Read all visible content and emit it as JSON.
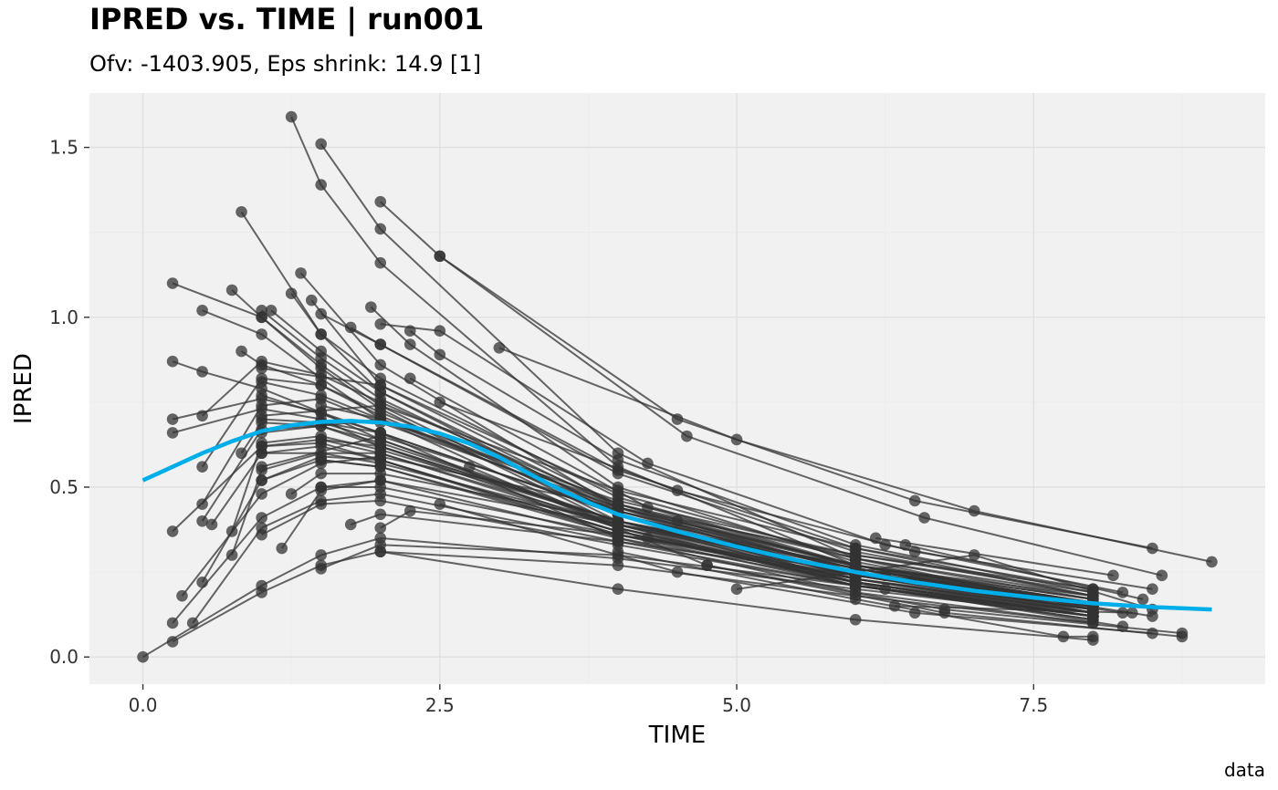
{
  "title": "IPRED vs. TIME | run001",
  "subtitle": "Ofv: -1403.905, Eps shrink: 14.9 [1]",
  "caption": "data",
  "chart_data": {
    "type": "line",
    "xlabel": "TIME",
    "ylabel": "IPRED",
    "xlim": [
      -0.45,
      9.45
    ],
    "ylim": [
      -0.08,
      1.66
    ],
    "x_ticks": [
      0,
      2.5,
      5,
      7.5
    ],
    "x_tick_labels": [
      "0.0",
      "2.5",
      "5.0",
      "7.5"
    ],
    "y_ticks": [
      0,
      0.5,
      1.0,
      1.5
    ],
    "y_tick_labels": [
      "0.0",
      "0.5",
      "1.0",
      "1.5"
    ],
    "grid": true,
    "colors": {
      "panel": "#f1f1f1",
      "grid_major": "#e0e0e0",
      "grid_minor": "#ebebeb",
      "points": "#333333",
      "smooth": "#00aee9"
    },
    "series": [
      {
        "x": [
          0.25,
          1.0,
          1.5,
          2.0,
          4.0,
          6.0,
          8.0
        ],
        "y": [
          1.1,
          1.0,
          0.86,
          0.74,
          0.4,
          0.22,
          0.12
        ]
      },
      {
        "x": [
          0.5,
          1.0,
          1.5,
          2.0,
          4.0,
          6.0,
          8.0
        ],
        "y": [
          1.02,
          0.95,
          0.82,
          0.7,
          0.38,
          0.21,
          0.11
        ]
      },
      {
        "x": [
          0.25,
          0.5,
          1.0,
          1.5,
          2.0,
          4.0,
          6.0,
          8.0
        ],
        "y": [
          0.87,
          0.84,
          0.79,
          0.72,
          0.64,
          0.39,
          0.23,
          0.13
        ]
      },
      {
        "x": [
          0.25,
          1.0,
          1.5,
          2.0,
          4.0,
          6.0,
          8.0
        ],
        "y": [
          0.7,
          0.76,
          0.72,
          0.66,
          0.42,
          0.26,
          0.15
        ]
      },
      {
        "x": [
          0.25,
          1.0,
          1.5,
          2.0,
          4.0,
          6.0,
          8.0
        ],
        "y": [
          0.66,
          0.73,
          0.7,
          0.62,
          0.38,
          0.22,
          0.12
        ]
      },
      {
        "x": [
          0.25,
          1.0,
          1.5,
          2.0,
          4.0,
          6.0,
          8.0
        ],
        "y": [
          0.37,
          0.62,
          0.63,
          0.58,
          0.36,
          0.21,
          0.12
        ]
      },
      {
        "x": [
          0.25,
          1.0,
          1.5,
          2.0,
          4.0,
          6.0,
          8.0
        ],
        "y": [
          0.1,
          0.41,
          0.5,
          0.5,
          0.36,
          0.24,
          0.16
        ]
      },
      {
        "x": [
          0.25,
          1.0,
          1.5,
          2.0,
          4.0,
          6.0,
          8.0
        ],
        "y": [
          0.045,
          0.19,
          0.27,
          0.31,
          0.27,
          0.18,
          0.1
        ]
      },
      {
        "x": [
          0.0,
          1.0,
          1.5,
          2.0,
          4.0,
          6.0,
          8.0
        ],
        "y": [
          0.0,
          0.21,
          0.3,
          0.35,
          0.29,
          0.2,
          0.12
        ]
      },
      {
        "x": [
          0.33,
          1.0,
          1.5,
          2.0,
          4.0,
          6.0,
          8.0
        ],
        "y": [
          0.18,
          0.48,
          0.57,
          0.59,
          0.44,
          0.3,
          0.2
        ]
      },
      {
        "x": [
          0.42,
          1.0,
          1.5,
          2.0,
          4.0,
          6.0,
          8.0
        ],
        "y": [
          0.1,
          0.38,
          0.46,
          0.48,
          0.34,
          0.21,
          0.12
        ]
      },
      {
        "x": [
          0.5,
          1.0,
          1.5,
          2.0,
          4.0,
          6.0,
          8.0
        ],
        "y": [
          0.22,
          0.52,
          0.58,
          0.56,
          0.37,
          0.22,
          0.12
        ]
      },
      {
        "x": [
          0.5,
          1.0,
          1.5,
          2.0,
          4.0,
          6.0,
          8.0
        ],
        "y": [
          0.4,
          0.67,
          0.68,
          0.63,
          0.4,
          0.24,
          0.14
        ]
      },
      {
        "x": [
          0.5,
          1.0,
          1.5,
          2.0,
          4.0,
          6.0,
          8.0
        ],
        "y": [
          0.56,
          0.82,
          0.8,
          0.72,
          0.44,
          0.27,
          0.16
        ]
      },
      {
        "x": [
          0.5,
          1.0,
          1.5,
          2.0,
          4.0,
          6.0,
          8.0
        ],
        "y": [
          0.71,
          0.87,
          0.83,
          0.75,
          0.45,
          0.27,
          0.16
        ]
      },
      {
        "x": [
          0.5,
          1.0,
          1.5,
          2.0,
          4.0,
          6.0,
          8.0
        ],
        "y": [
          0.45,
          0.74,
          0.76,
          0.69,
          0.44,
          0.27,
          0.17
        ]
      },
      {
        "x": [
          0.58,
          1.0,
          1.5,
          2.0,
          4.0,
          6.0,
          8.0
        ],
        "y": [
          0.39,
          0.6,
          0.62,
          0.58,
          0.37,
          0.23,
          0.13
        ]
      },
      {
        "x": [
          0.75,
          1.0,
          1.5,
          2.0,
          4.0,
          6.0,
          8.0
        ],
        "y": [
          0.3,
          0.55,
          0.6,
          0.57,
          0.39,
          0.25,
          0.15
        ]
      },
      {
        "x": [
          0.75,
          1.0,
          1.5,
          2.0,
          4.0,
          6.0,
          8.0
        ],
        "y": [
          0.37,
          0.63,
          0.65,
          0.61,
          0.4,
          0.25,
          0.15
        ]
      },
      {
        "x": [
          0.75,
          1.0,
          1.5,
          2.0,
          4.0,
          6.0,
          8.0
        ],
        "y": [
          1.08,
          1.0,
          0.85,
          0.73,
          0.39,
          0.21,
          0.11
        ]
      },
      {
        "x": [
          0.83,
          1.0,
          1.5,
          2.0,
          4.0,
          6.0,
          8.0
        ],
        "y": [
          0.6,
          0.69,
          0.68,
          0.62,
          0.4,
          0.24,
          0.14
        ]
      },
      {
        "x": [
          0.83,
          1.0,
          1.5,
          2.0,
          4.0,
          6.0,
          8.0
        ],
        "y": [
          0.9,
          0.86,
          0.8,
          0.71,
          0.42,
          0.24,
          0.14
        ]
      },
      {
        "x": [
          0.83,
          1.5,
          2.0,
          4.0,
          6.0,
          8.0
        ],
        "y": [
          1.31,
          0.95,
          0.78,
          0.42,
          0.22,
          0.12
        ]
      },
      {
        "x": [
          1.0,
          1.5,
          2.0,
          4.0,
          6.0,
          8.0
        ],
        "y": [
          1.02,
          0.88,
          0.76,
          0.43,
          0.24,
          0.13
        ]
      },
      {
        "x": [
          1.0,
          1.5,
          2.0,
          4.0,
          6.0,
          8.0
        ],
        "y": [
          0.81,
          0.77,
          0.7,
          0.43,
          0.26,
          0.15
        ]
      },
      {
        "x": [
          1.0,
          1.5,
          2.0,
          4.0,
          6.0,
          8.0
        ],
        "y": [
          0.36,
          0.45,
          0.46,
          0.33,
          0.21,
          0.12
        ]
      },
      {
        "x": [
          1.08,
          1.5,
          2.0,
          4.0,
          6.0,
          8.0
        ],
        "y": [
          1.02,
          0.9,
          0.78,
          0.44,
          0.25,
          0.14
        ]
      },
      {
        "x": [
          1.17,
          1.5,
          2.0,
          4.0,
          6.0,
          8.0
        ],
        "y": [
          0.32,
          0.49,
          0.52,
          0.39,
          0.27,
          0.18
        ]
      },
      {
        "x": [
          1.25,
          1.5,
          2.0,
          4.0,
          6.0,
          8.0
        ],
        "y": [
          1.59,
          1.39,
          1.16,
          0.56,
          0.27,
          0.13
        ]
      },
      {
        "x": [
          1.25,
          1.5,
          2.0,
          4.0,
          6.0,
          8.0
        ],
        "y": [
          1.07,
          0.95,
          0.82,
          0.47,
          0.27,
          0.15
        ]
      },
      {
        "x": [
          1.25,
          1.5,
          2.0,
          4.0,
          6.0,
          8.0
        ],
        "y": [
          0.48,
          0.54,
          0.54,
          0.4,
          0.27,
          0.17
        ]
      },
      {
        "x": [
          1.33,
          2.0,
          4.0,
          6.0,
          8.0
        ],
        "y": [
          1.13,
          0.86,
          0.44,
          0.23,
          0.12
        ]
      },
      {
        "x": [
          1.42,
          2.0,
          4.0,
          6.0,
          8.0
        ],
        "y": [
          1.05,
          0.8,
          0.45,
          0.25,
          0.13
        ]
      },
      {
        "x": [
          1.5,
          2.0,
          4.0,
          6.0,
          8.0
        ],
        "y": [
          1.51,
          1.26,
          0.6,
          0.29,
          0.14
        ]
      },
      {
        "x": [
          1.5,
          2.0,
          4.0,
          6.0,
          8.0
        ],
        "y": [
          1.01,
          0.92,
          0.54,
          0.31,
          0.18
        ]
      },
      {
        "x": [
          1.5,
          2.0,
          4.0,
          6.0,
          8.0
        ],
        "y": [
          0.26,
          0.33,
          0.3,
          0.21,
          0.13
        ]
      },
      {
        "x": [
          1.75,
          2.0,
          4.0,
          6.0,
          8.0
        ],
        "y": [
          0.39,
          0.42,
          0.34,
          0.24,
          0.15
        ]
      },
      {
        "x": [
          1.75,
          2.0,
          4.0,
          6.0,
          8.0
        ],
        "y": [
          0.97,
          0.92,
          0.55,
          0.32,
          0.18
        ]
      },
      {
        "x": [
          1.92,
          2.25,
          4.0,
          6.0,
          8.0
        ],
        "y": [
          1.03,
          0.92,
          0.5,
          0.28,
          0.15
        ]
      },
      {
        "x": [
          2.0,
          2.5,
          4.5,
          6.5,
          8.5
        ],
        "y": [
          1.34,
          1.18,
          0.7,
          0.46,
          0.32
        ]
      },
      {
        "x": [
          2.0,
          2.25,
          4.0,
          6.0,
          8.0
        ],
        "y": [
          0.38,
          0.43,
          0.36,
          0.25,
          0.16
        ]
      },
      {
        "x": [
          2.0,
          2.5,
          4.25,
          6.25,
          8.25
        ],
        "y": [
          0.98,
          0.96,
          0.57,
          0.33,
          0.19
        ]
      },
      {
        "x": [
          2.25,
          2.5,
          4.0,
          6.0,
          8.0
        ],
        "y": [
          0.96,
          0.89,
          0.58,
          0.33,
          0.19
        ]
      },
      {
        "x": [
          2.5,
          4.58,
          6.58,
          8.58
        ],
        "y": [
          1.18,
          0.65,
          0.41,
          0.24
        ]
      },
      {
        "x": [
          3.0,
          5.0,
          7.0,
          9.0
        ],
        "y": [
          0.91,
          0.64,
          0.43,
          0.28
        ]
      },
      {
        "x": [
          2.5,
          4.5,
          6.5,
          8.5
        ],
        "y": [
          0.75,
          0.49,
          0.31,
          0.2
        ]
      },
      {
        "x": [
          2.25,
          4.25,
          6.25,
          8.25
        ],
        "y": [
          0.82,
          0.44,
          0.24,
          0.13
        ]
      },
      {
        "x": [
          2.5,
          4.5,
          6.5,
          8.5
        ],
        "y": [
          0.45,
          0.25,
          0.13,
          0.07
        ]
      },
      {
        "x": [
          2.0,
          4.0,
          6.0,
          8.0
        ],
        "y": [
          0.31,
          0.2,
          0.11,
          0.05
        ]
      },
      {
        "x": [
          2.75,
          4.75,
          6.75,
          8.75
        ],
        "y": [
          0.56,
          0.27,
          0.13,
          0.06
        ]
      },
      {
        "x": [
          1.0,
          2.0,
          4.0,
          6.0,
          8.0
        ],
        "y": [
          0.56,
          0.65,
          0.43,
          0.27,
          0.16
        ]
      },
      {
        "x": [
          1.0,
          2.0,
          4.0,
          6.0,
          8.0
        ],
        "y": [
          0.66,
          0.7,
          0.46,
          0.3,
          0.19
        ]
      },
      {
        "x": [
          1.0,
          2.0,
          4.0,
          6.0,
          8.0
        ],
        "y": [
          0.71,
          0.74,
          0.49,
          0.32,
          0.2
        ]
      },
      {
        "x": [
          1.0,
          2.0,
          4.0,
          6.0,
          8.0
        ],
        "y": [
          0.6,
          0.6,
          0.38,
          0.23,
          0.13
        ]
      },
      {
        "x": [
          1.0,
          2.0,
          4.0,
          6.0,
          8.0
        ],
        "y": [
          0.85,
          0.8,
          0.48,
          0.29,
          0.17
        ]
      },
      {
        "x": [
          1.0,
          2.0,
          4.0,
          6.0,
          8.0
        ],
        "y": [
          0.77,
          0.66,
          0.35,
          0.19,
          0.1
        ]
      },
      {
        "x": [
          1.5,
          2.0,
          4.0,
          6.0,
          8.0
        ],
        "y": [
          0.64,
          0.62,
          0.4,
          0.26,
          0.16
        ]
      },
      {
        "x": [
          1.5,
          2.0,
          4.0,
          6.0,
          8.0
        ],
        "y": [
          0.58,
          0.56,
          0.36,
          0.23,
          0.14
        ]
      },
      {
        "x": [
          1.5,
          2.0,
          4.0,
          6.0,
          8.0
        ],
        "y": [
          0.69,
          0.66,
          0.42,
          0.26,
          0.16
        ]
      },
      {
        "x": [
          1.5,
          2.0,
          4.0,
          6.0,
          8.0
        ],
        "y": [
          0.74,
          0.7,
          0.45,
          0.29,
          0.18
        ]
      },
      {
        "x": [
          1.5,
          2.0,
          4.0,
          6.0,
          8.0
        ],
        "y": [
          0.5,
          0.52,
          0.35,
          0.22,
          0.13
        ]
      },
      {
        "x": [
          1.0,
          1.5,
          2.0,
          4.0,
          6.0,
          8.0
        ],
        "y": [
          0.52,
          0.59,
          0.58,
          0.37,
          0.22,
          0.12
        ]
      },
      {
        "x": [
          1.0,
          1.5,
          2.0,
          4.0,
          6.0,
          8.0
        ],
        "y": [
          0.7,
          0.69,
          0.64,
          0.4,
          0.24,
          0.14
        ]
      },
      {
        "x": [
          1.0,
          1.5,
          2.0,
          4.0,
          6.0,
          8.0
        ],
        "y": [
          0.62,
          0.64,
          0.6,
          0.39,
          0.24,
          0.15
        ]
      },
      {
        "x": [
          4.25,
          6.25,
          8.25
        ],
        "y": [
          0.35,
          0.2,
          0.09
        ]
      },
      {
        "x": [
          4.5,
          6.5,
          8.5
        ],
        "y": [
          0.4,
          0.23,
          0.12
        ]
      },
      {
        "x": [
          4.75,
          6.75,
          8.75
        ],
        "y": [
          0.27,
          0.14,
          0.07
        ]
      },
      {
        "x": [
          5.0,
          7.0,
          8.5
        ],
        "y": [
          0.2,
          0.3,
          0.14
        ]
      },
      {
        "x": [
          6.17,
          8.17
        ],
        "y": [
          0.35,
          0.24
        ]
      },
      {
        "x": [
          6.42,
          8.42
        ],
        "y": [
          0.33,
          0.17
        ]
      },
      {
        "x": [
          6.33,
          8.33
        ],
        "y": [
          0.15,
          0.13
        ]
      },
      {
        "x": [
          4.0,
          6.0,
          7.75,
          8.0
        ],
        "y": [
          0.31,
          0.17,
          0.06,
          0.06
        ]
      }
    ],
    "smooth": {
      "x": [
        0,
        0.25,
        0.5,
        0.75,
        1.0,
        1.25,
        1.5,
        1.75,
        2.0,
        2.25,
        2.5,
        2.75,
        3.0,
        3.25,
        3.5,
        3.75,
        4.0,
        4.5,
        5.0,
        5.5,
        6.0,
        6.5,
        7.0,
        7.5,
        8.0,
        8.5,
        9.0
      ],
      "y": [
        0.52,
        0.56,
        0.6,
        0.635,
        0.665,
        0.682,
        0.692,
        0.695,
        0.69,
        0.678,
        0.658,
        0.628,
        0.588,
        0.54,
        0.495,
        0.455,
        0.42,
        0.37,
        0.325,
        0.285,
        0.25,
        0.22,
        0.195,
        0.175,
        0.158,
        0.147,
        0.14
      ]
    }
  }
}
